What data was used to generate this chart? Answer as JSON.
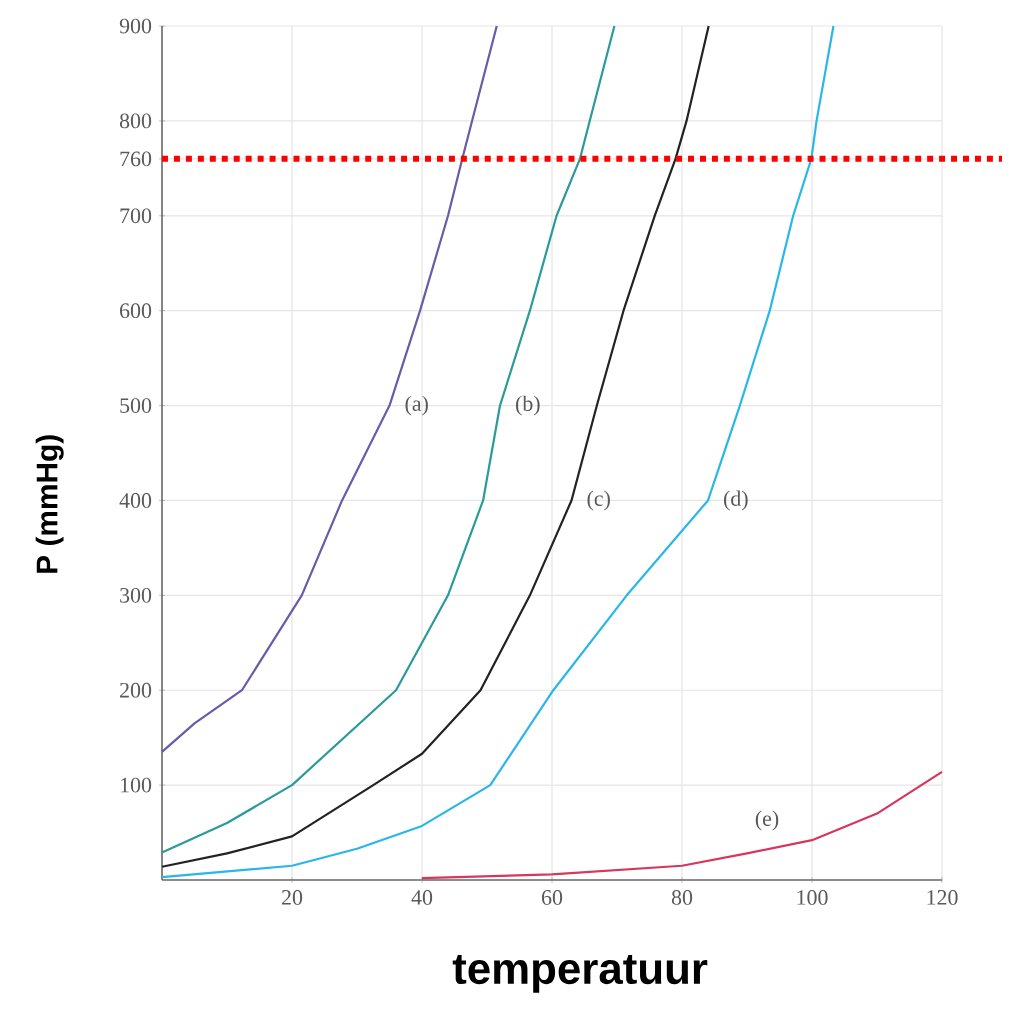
{
  "chart_data": {
    "type": "line",
    "xlabel": "temperatuur",
    "ylabel": "P (mmHg)",
    "xlim": [
      0,
      120
    ],
    "ylim": [
      0,
      900
    ],
    "xticks": [
      20,
      40,
      60,
      80,
      100,
      120
    ],
    "yticks": [
      100,
      200,
      300,
      400,
      500,
      600,
      700,
      760,
      800,
      900
    ],
    "grid": true,
    "marker": "none",
    "line_style": "solid",
    "series": [
      {
        "name": "(a)",
        "color": "#6a5aa8",
        "x": [
          0,
          5,
          12.3,
          21.5,
          27.7,
          35,
          39.7,
          44,
          46.2,
          47.7,
          51.5
        ],
        "values": [
          135,
          165,
          200,
          300,
          400,
          500,
          600,
          700,
          760,
          800,
          900
        ]
      },
      {
        "name": "(b)",
        "color": "#2a9a9a",
        "x": [
          0,
          10,
          20,
          36,
          44,
          49.4,
          52,
          56.6,
          60.7,
          64.3,
          65.8,
          69.6
        ],
        "values": [
          29,
          60,
          100,
          200,
          300,
          400,
          500,
          600,
          700,
          760,
          800,
          900
        ]
      },
      {
        "name": "(c)",
        "color": "#222222",
        "x": [
          0,
          10,
          20,
          32.5,
          40,
          49,
          56.6,
          63,
          66.9,
          71,
          75.8,
          79,
          80.7,
          84.1
        ],
        "values": [
          14,
          28,
          46,
          100,
          133,
          200,
          300,
          400,
          500,
          600,
          700,
          760,
          800,
          900
        ]
      },
      {
        "name": "(d)",
        "color": "#29b6e8",
        "x": [
          0,
          20,
          30,
          40,
          50.5,
          60.2,
          71.5,
          84,
          88.9,
          93.5,
          97.1,
          99.9,
          100.7,
          103.3
        ],
        "values": [
          3,
          15,
          33,
          57,
          100,
          200,
          300,
          400,
          500,
          600,
          700,
          760,
          800,
          900
        ]
      },
      {
        "name": "(e)",
        "color": "#d8365a",
        "x": [
          40,
          60,
          80,
          90,
          100,
          110,
          120
        ],
        "values": [
          2,
          6,
          15,
          28,
          42,
          70,
          114
        ]
      }
    ],
    "ref_lines": [
      {
        "axis": "y",
        "value": 760,
        "color": "#ff0000",
        "line_style": "dotted"
      }
    ]
  }
}
